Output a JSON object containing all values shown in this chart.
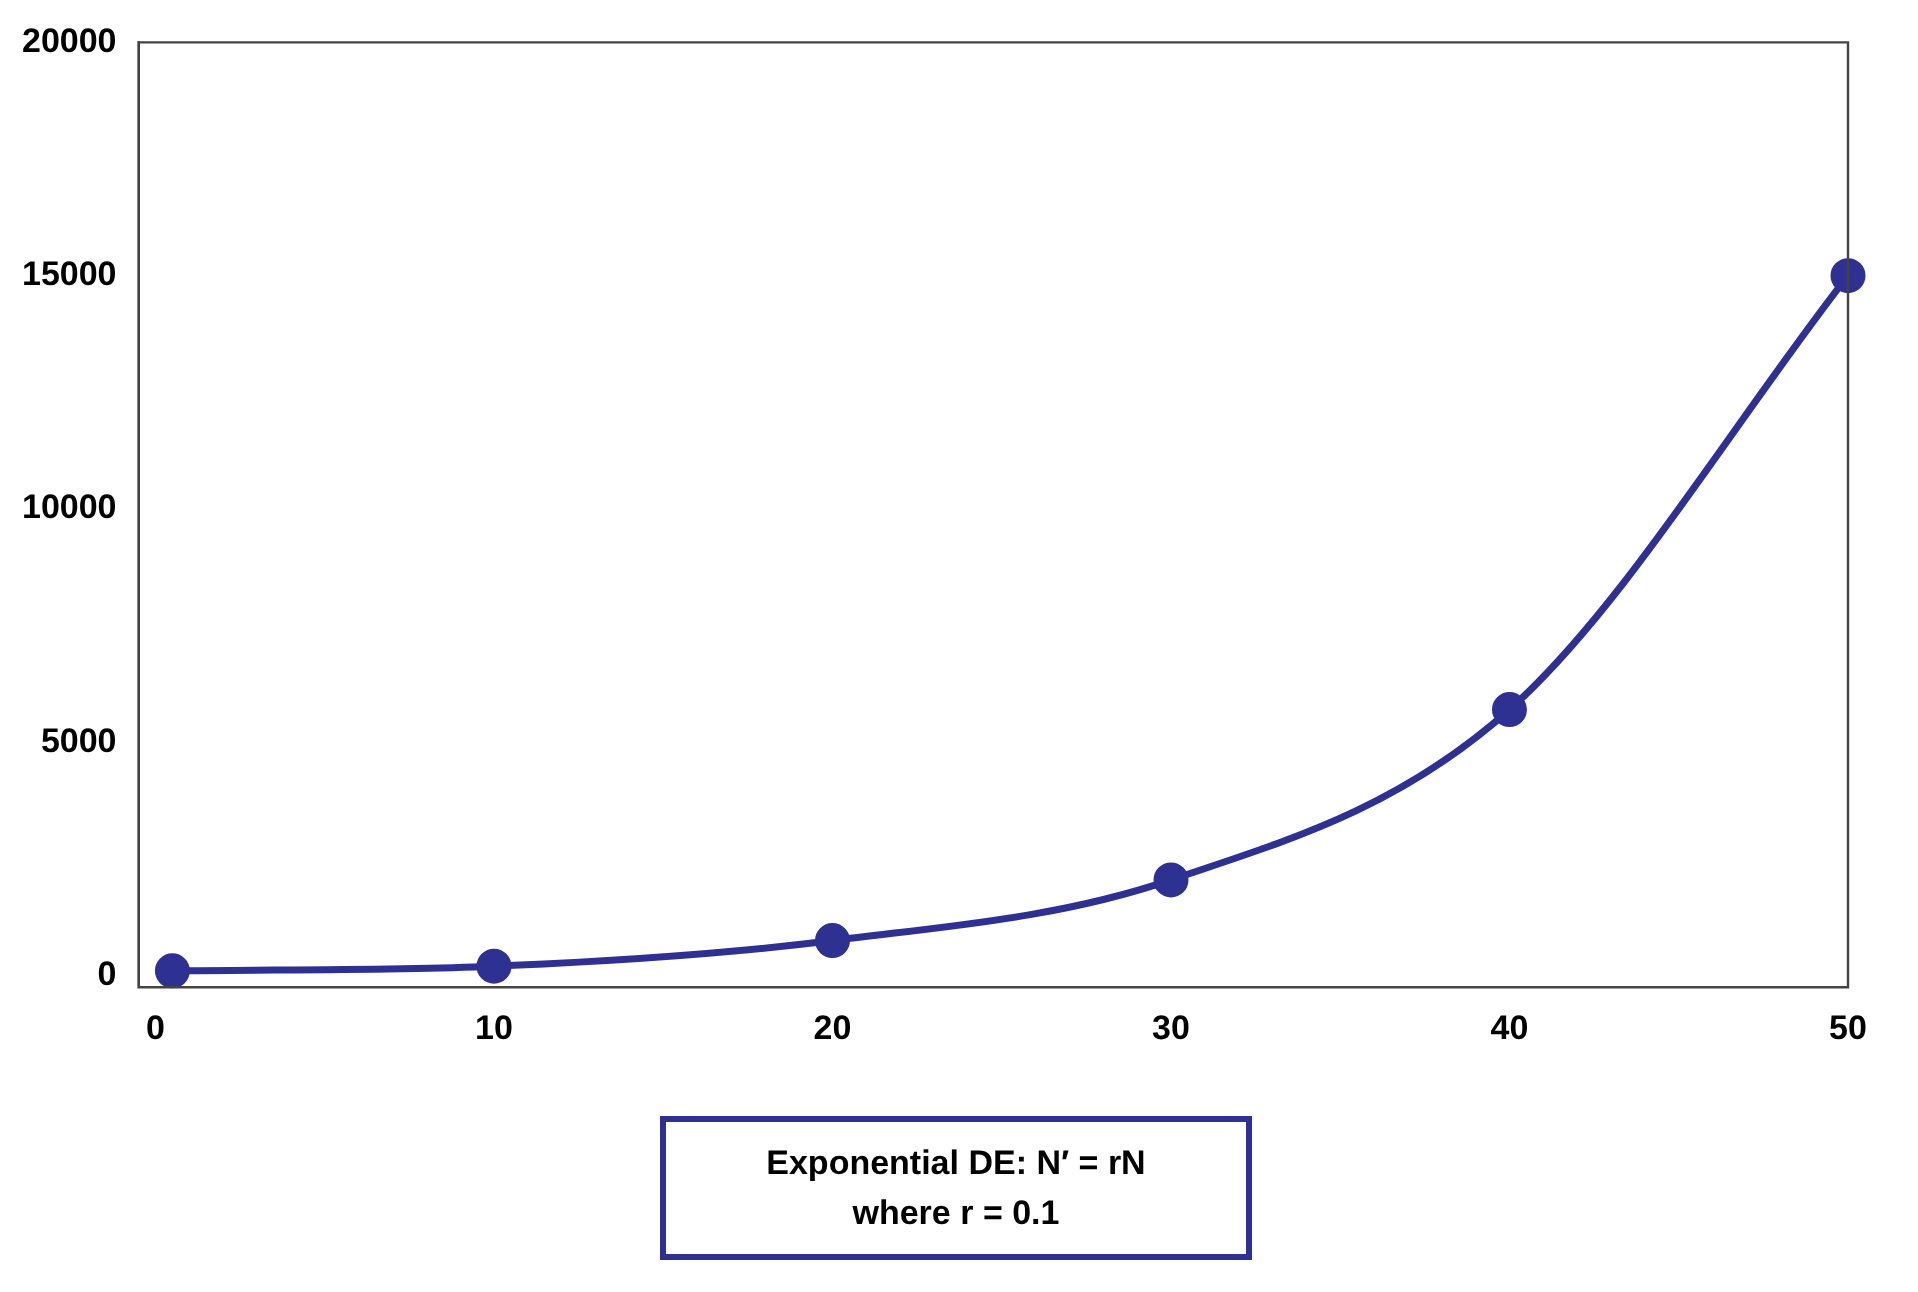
{
  "chart_data": {
    "type": "line",
    "x": [
      0.5,
      10,
      20,
      30,
      40,
      50
    ],
    "series": [
      {
        "color": "#2e3192",
        "values": [
          100,
          200,
          750,
          2050,
          5700,
          15000
        ]
      }
    ],
    "xlim": [
      -0.5,
      50
    ],
    "xticks": [
      0,
      10,
      20,
      30,
      40,
      50
    ],
    "ylim": [
      -250,
      20000
    ],
    "yticks": [
      0,
      5000,
      10000,
      15000,
      20000
    ],
    "grid": false,
    "legend": false,
    "marker": "circle",
    "line_style": "solid",
    "annotations": [
      "Exponential DE: N′ = rN",
      "where r = 0.1"
    ]
  }
}
